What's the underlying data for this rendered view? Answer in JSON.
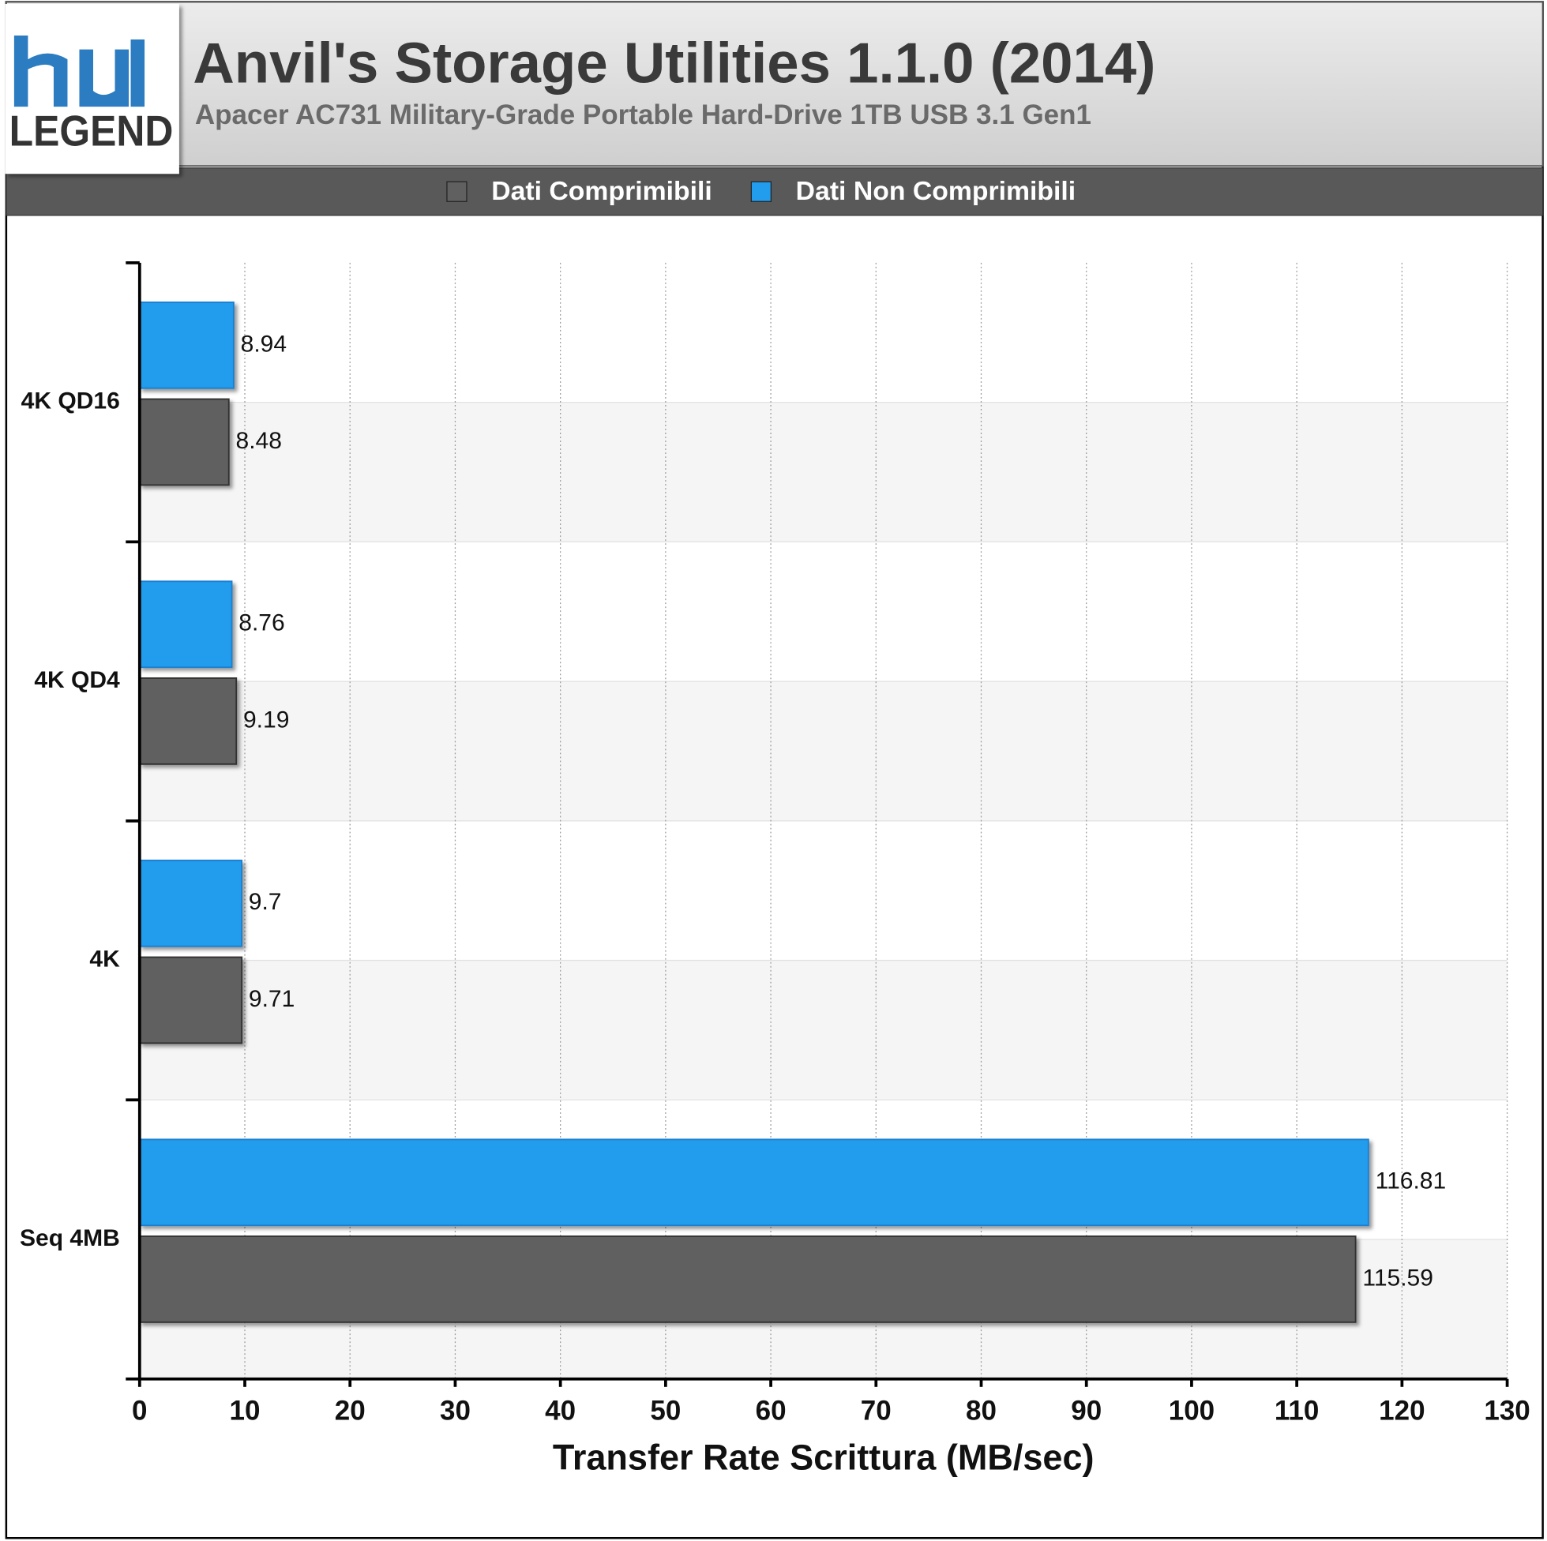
{
  "logo_text": "LEGEND",
  "chart_data": {
    "type": "hbar",
    "title": "Anvil's Storage Utilities 1.1.0 (2014)",
    "subtitle": "Apacer AC731 Military-Grade Portable Hard-Drive 1TB USB 3.1 Gen1",
    "x_label": "Transfer Rate Scrittura (MB/sec)",
    "categories": [
      "4K QD16",
      "4K QD4",
      "4K",
      "Seq 4MB"
    ],
    "series": [
      {
        "name": "Dati Comprimibili",
        "color": "#606060",
        "values": [
          8.48,
          9.19,
          9.71,
          115.59
        ]
      },
      {
        "name": "Dati Non Comprimibili",
        "color": "#229cec",
        "values": [
          8.94,
          8.76,
          9.7,
          116.81
        ]
      }
    ],
    "xlim": [
      0,
      130
    ],
    "xticks": [
      0,
      10,
      20,
      30,
      40,
      50,
      60,
      70,
      80,
      90,
      100,
      110,
      120,
      130
    ],
    "grid": true,
    "legend": "top"
  }
}
